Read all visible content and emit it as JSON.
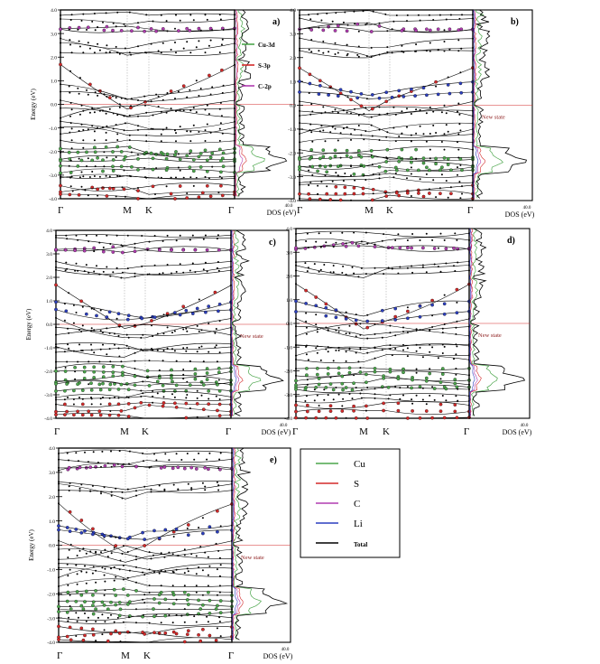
{
  "common": {
    "ylabel": "Energy (eV)",
    "ylim": [
      -4.0,
      4.0
    ],
    "yticks": [
      "4.0",
      "3.0",
      "2.0",
      "1.0",
      "0.0",
      "-1.0",
      "-2.0",
      "-3.0",
      "-4.0"
    ],
    "kpath": [
      "Γ",
      "M",
      "K",
      "Γ"
    ],
    "dos_label": "DOS (eV)",
    "dos_max": "40.0",
    "new_state_label": "New state"
  },
  "colors": {
    "cu": "#4ca64c",
    "s": "#d42a2a",
    "c": "#b03cb0",
    "li": "#2c3fbf",
    "total": "#000000",
    "fermi": "#d42a2a"
  },
  "legend_top": [
    {
      "label": "Cu-3d",
      "color": "#4ca64c"
    },
    {
      "label": "S-3p",
      "color": "#d42a2a"
    },
    {
      "label": "C-2p",
      "color": "#b03cb0"
    }
  ],
  "legend_box": [
    {
      "label": "Cu",
      "color": "#4ca64c"
    },
    {
      "label": "S",
      "color": "#d42a2a"
    },
    {
      "label": "C",
      "color": "#b03cb0"
    },
    {
      "label": "Li",
      "color": "#2c3fbf"
    },
    {
      "label": "Total",
      "color": "#000000"
    }
  ],
  "chart_data": [
    {
      "type": "line",
      "panel": "a)",
      "has_ylabel": true,
      "has_new_state": false,
      "has_li": false
    },
    {
      "type": "line",
      "panel": "b)",
      "has_ylabel": false,
      "has_new_state": true,
      "has_li": true
    },
    {
      "type": "line",
      "panel": "c)",
      "has_ylabel": true,
      "has_new_state": true,
      "has_li": true
    },
    {
      "type": "line",
      "panel": "d)",
      "has_ylabel": false,
      "has_new_state": true,
      "has_li": true
    },
    {
      "type": "line",
      "panel": "e)",
      "has_ylabel": true,
      "has_new_state": true,
      "has_li": true
    }
  ]
}
